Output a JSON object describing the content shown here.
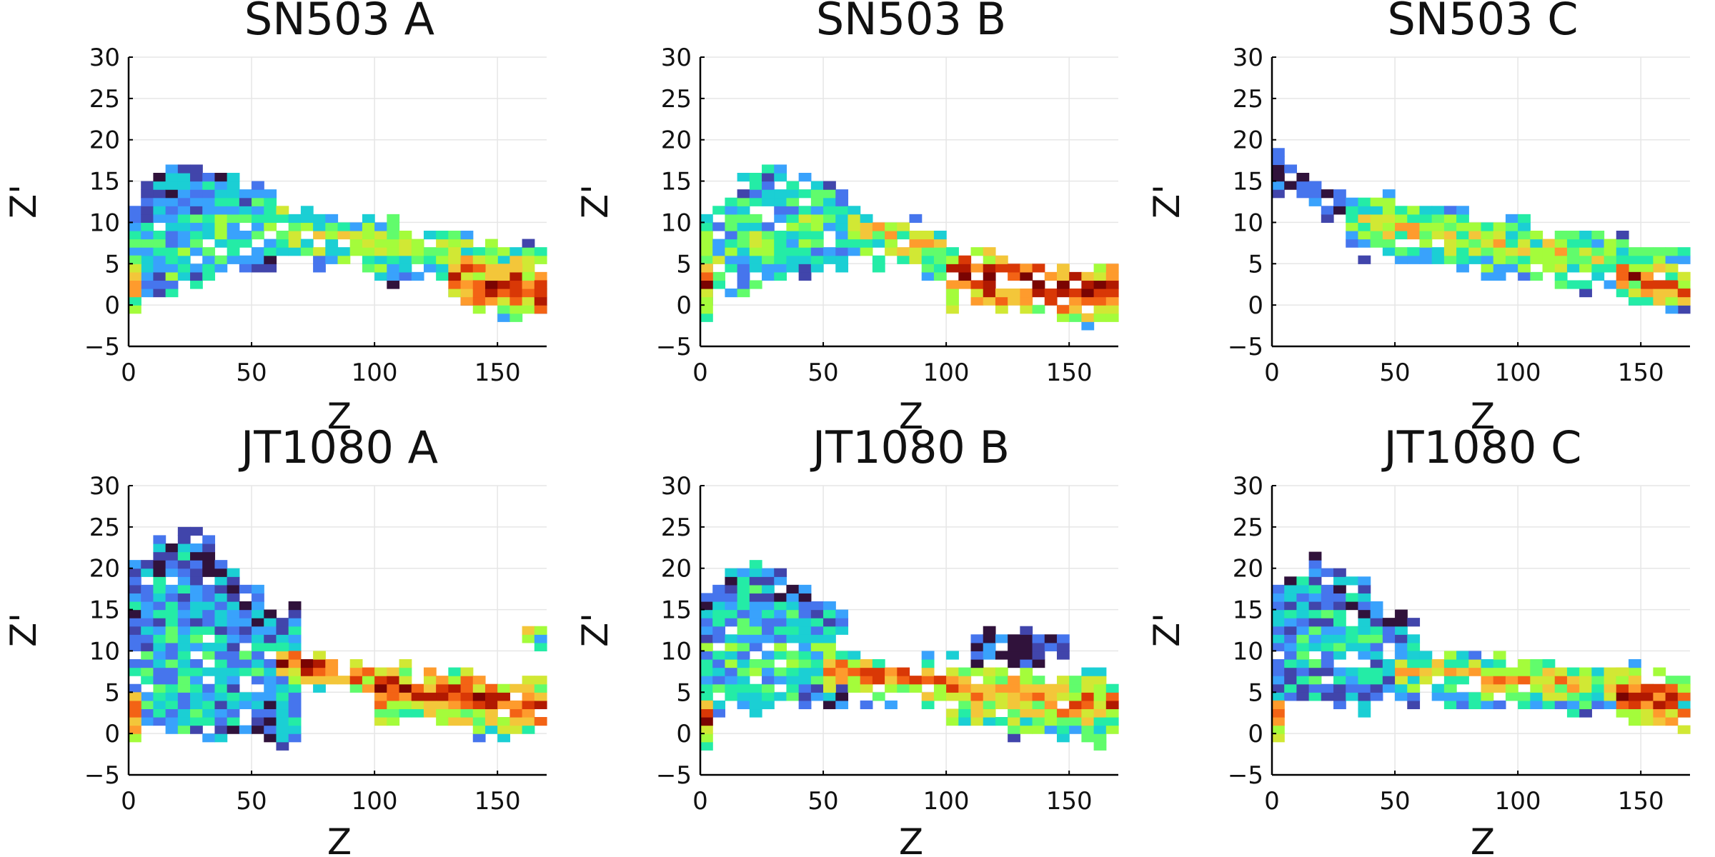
{
  "colors": {
    "background": "#ffffff",
    "axis": "#000000",
    "grid": "#e6e6e6",
    "text": "#111111",
    "colormap": [
      "#30123b",
      "#4145ab",
      "#4675ed",
      "#39a2fc",
      "#1bcfd4",
      "#24eca6",
      "#61fc6c",
      "#a4fc3b",
      "#d1e834",
      "#f3c63a",
      "#fe9b2d",
      "#f36315",
      "#d93806",
      "#b11901",
      "#7a0402"
    ]
  },
  "chart_data": [
    {
      "type": "heatmap",
      "title": "SN503 A",
      "xlabel": "Z",
      "ylabel": "Z'",
      "xlim": [
        0,
        170
      ],
      "ylim": [
        -5,
        30
      ],
      "xticks": [
        "0",
        "50",
        "100",
        "150"
      ],
      "yticks": [
        "−5",
        "0",
        "5",
        "10",
        "15",
        "20",
        "25",
        "30"
      ],
      "bin_width": 5,
      "bin_height": 1,
      "grid": true,
      "bands": [
        {
          "x": [
            0,
            60
          ],
          "yc": [
            5,
            9
          ],
          "h": 9,
          "rise": 6,
          "i": 0.35
        },
        {
          "x": [
            60,
            170
          ],
          "yc": [
            9,
            3
          ],
          "h": 6,
          "rise": 0,
          "i": 0.55
        },
        {
          "x": [
            130,
            170
          ],
          "yc": [
            3,
            1
          ],
          "h": 5,
          "rise": 0,
          "i": 0.95
        },
        {
          "x": [
            0,
            5
          ],
          "yc": [
            2,
            4
          ],
          "h": 6,
          "rise": 0,
          "i": 0.7
        }
      ]
    },
    {
      "type": "heatmap",
      "title": "SN503 B",
      "xlabel": "Z",
      "ylabel": "Z'",
      "xlim": [
        0,
        170
      ],
      "ylim": [
        -5,
        30
      ],
      "xticks": [
        "0",
        "50",
        "100",
        "150"
      ],
      "yticks": [
        "−5",
        "0",
        "5",
        "10",
        "15",
        "20",
        "25",
        "30"
      ],
      "bin_width": 5,
      "bin_height": 1,
      "grid": true,
      "bands": [
        {
          "x": [
            0,
            60
          ],
          "yc": [
            5,
            10
          ],
          "h": 9,
          "rise": 5,
          "i": 0.4
        },
        {
          "x": [
            60,
            100
          ],
          "yc": [
            9,
            6
          ],
          "h": 5,
          "rise": 0,
          "i": 0.6
        },
        {
          "x": [
            100,
            170
          ],
          "yc": [
            3,
            1
          ],
          "h": 6,
          "rise": 0,
          "i": 0.95
        },
        {
          "x": [
            0,
            5
          ],
          "yc": [
            2,
            3
          ],
          "h": 6,
          "rise": 0,
          "i": 0.85
        }
      ]
    },
    {
      "type": "heatmap",
      "title": "SN503 C",
      "xlabel": "Z",
      "ylabel": "Z'",
      "xlim": [
        0,
        170
      ],
      "ylim": [
        -5,
        30
      ],
      "xticks": [
        "0",
        "50",
        "100",
        "150"
      ],
      "yticks": [
        "−5",
        "0",
        "5",
        "10",
        "15",
        "20",
        "25",
        "30"
      ],
      "bin_width": 5,
      "bin_height": 1,
      "grid": true,
      "bands": [
        {
          "x": [
            0,
            30
          ],
          "yc": [
            16,
            12
          ],
          "h": 3,
          "rise": 0,
          "i": 0.12
        },
        {
          "x": [
            30,
            170
          ],
          "yc": [
            10,
            3
          ],
          "h": 6,
          "rise": 0,
          "i": 0.55
        },
        {
          "x": [
            140,
            170
          ],
          "yc": [
            3,
            2
          ],
          "h": 4,
          "rise": 0,
          "i": 0.85
        }
      ]
    },
    {
      "type": "heatmap",
      "title": "JT1080 A",
      "xlabel": "Z",
      "ylabel": "Z'",
      "xlim": [
        0,
        170
      ],
      "ylim": [
        -5,
        30
      ],
      "xticks": [
        "0",
        "50",
        "100",
        "150"
      ],
      "yticks": [
        "−5",
        "0",
        "5",
        "10",
        "15",
        "20",
        "25",
        "30"
      ],
      "bin_width": 5,
      "bin_height": 1,
      "grid": true,
      "bands": [
        {
          "x": [
            0,
            70
          ],
          "yc": [
            8,
            7
          ],
          "h": 15,
          "rise": 10,
          "i": 0.3
        },
        {
          "x": [
            60,
            100
          ],
          "yc": [
            8,
            7
          ],
          "h": 3,
          "rise": 0,
          "i": 0.9
        },
        {
          "x": [
            100,
            170
          ],
          "yc": [
            5,
            3
          ],
          "h": 6,
          "rise": 0,
          "i": 0.85
        },
        {
          "x": [
            0,
            5
          ],
          "yc": [
            2,
            3
          ],
          "h": 6,
          "rise": 0,
          "i": 0.9
        },
        {
          "x": [
            160,
            170
          ],
          "yc": [
            12,
            12
          ],
          "h": 2,
          "rise": 0,
          "i": 0.5
        }
      ]
    },
    {
      "type": "heatmap",
      "title": "JT1080 B",
      "xlabel": "Z",
      "ylabel": "Z'",
      "xlim": [
        0,
        170
      ],
      "ylim": [
        -5,
        30
      ],
      "xticks": [
        "0",
        "50",
        "100",
        "150"
      ],
      "yticks": [
        "−5",
        "0",
        "5",
        "10",
        "15",
        "20",
        "25",
        "30"
      ],
      "bin_width": 5,
      "bin_height": 1,
      "grid": true,
      "bands": [
        {
          "x": [
            0,
            60
          ],
          "yc": [
            8,
            9
          ],
          "h": 10,
          "rise": 8,
          "i": 0.35
        },
        {
          "x": [
            50,
            100
          ],
          "yc": [
            7,
            6
          ],
          "h": 4,
          "rise": 0,
          "i": 0.75
        },
        {
          "x": [
            100,
            170
          ],
          "yc": [
            5,
            3
          ],
          "h": 7,
          "rise": 0,
          "i": 0.7
        },
        {
          "x": [
            110,
            150
          ],
          "yc": [
            10,
            11
          ],
          "h": 3,
          "rise": 0,
          "i": 0.1
        },
        {
          "x": [
            0,
            5
          ],
          "yc": [
            1,
            2
          ],
          "h": 4,
          "rise": 0,
          "i": 0.9
        }
      ]
    },
    {
      "type": "heatmap",
      "title": "JT1080 C",
      "xlabel": "Z",
      "ylabel": "Z'",
      "xlim": [
        0,
        170
      ],
      "ylim": [
        -5,
        30
      ],
      "xticks": [
        "0",
        "50",
        "100",
        "150"
      ],
      "yticks": [
        "−5",
        "0",
        "5",
        "10",
        "15",
        "20",
        "25",
        "30"
      ],
      "bin_width": 5,
      "bin_height": 1,
      "grid": true,
      "bands": [
        {
          "x": [
            0,
            60
          ],
          "yc": [
            10,
            8
          ],
          "h": 10,
          "rise": 7,
          "i": 0.3
        },
        {
          "x": [
            50,
            170
          ],
          "yc": [
            7,
            5
          ],
          "h": 5,
          "rise": 0,
          "i": 0.6
        },
        {
          "x": [
            140,
            170
          ],
          "yc": [
            4,
            3
          ],
          "h": 5,
          "rise": 0,
          "i": 0.9
        },
        {
          "x": [
            0,
            5
          ],
          "yc": [
            2,
            3
          ],
          "h": 4,
          "rise": 0,
          "i": 0.9
        }
      ]
    }
  ]
}
